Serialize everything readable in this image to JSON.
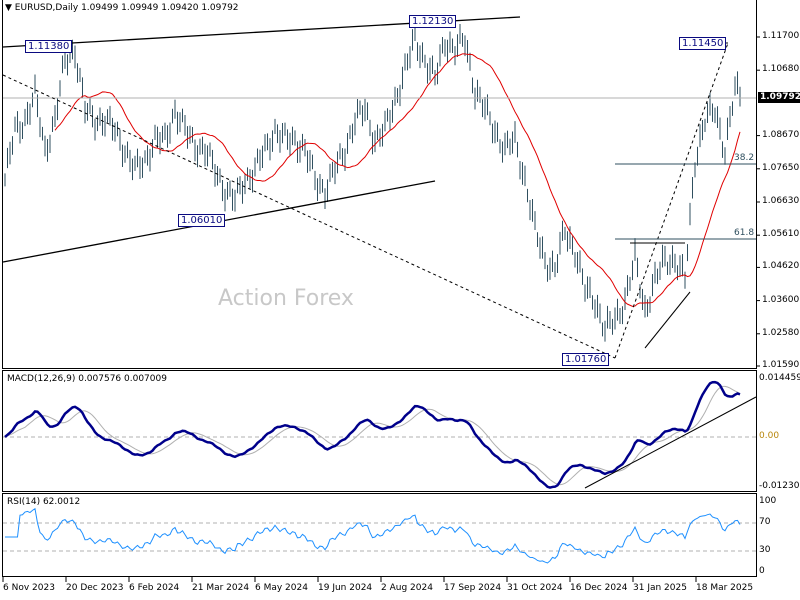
{
  "header": {
    "symbol": "EURUSD,Daily",
    "ohlc": "1.09499 1.09949 1.09420 1.09792"
  },
  "watermark": "Action Forex",
  "annotations": {
    "high1": "1.11380",
    "high2": "1.12130",
    "low1": "1.06010",
    "low2": "1.01760",
    "high3": "1.11450",
    "fib382": "38.2",
    "fib618": "61.8"
  },
  "current_price": "1.09792",
  "colors": {
    "bars": "#2f4f5f",
    "ma": "#e00000",
    "macd": "#00008b",
    "signal": "#b0b0b0",
    "rsi": "#1e90ff"
  },
  "chart_data": [
    {
      "type": "ohlc",
      "title": "EURUSD,Daily",
      "closes": [
        1.0731,
        1.0884,
        1.0915,
        1.0992,
        1.0823,
        1.0915,
        1.1099,
        1.113,
        1.0946,
        1.0915,
        1.0915,
        1.0884,
        1.0823,
        1.0761,
        1.0792,
        1.0854,
        1.0854,
        1.0946,
        1.0884,
        1.0838,
        1.0823,
        1.0761,
        1.07,
        1.0669,
        1.0731,
        1.0761,
        1.0823,
        1.0884,
        1.0854,
        1.0854,
        1.0823,
        1.0731,
        1.07,
        1.0761,
        1.0823,
        1.0915,
        1.0946,
        1.0854,
        1.0884,
        1.0976,
        1.1069,
        1.1161,
        1.1099,
        1.1038,
        1.1161,
        1.113,
        1.1161,
        1.1007,
        1.0946,
        1.0884,
        1.0823,
        1.0854,
        1.0731,
        1.0577,
        1.0485,
        1.0454,
        1.0577,
        1.0515,
        1.0393,
        1.0362,
        1.027,
        1.03,
        1.0362,
        1.0485,
        1.0331,
        1.0423,
        1.0485,
        1.0485,
        1.0423,
        1.0792,
        1.0915,
        1.0946,
        1.0823,
        1.1007,
        1.0976
      ],
      "moving_average": "red line",
      "y_ticks": [
        "1.11700",
        "1.10680",
        "1.08670",
        "1.07650",
        "1.06630",
        "1.05610",
        "1.04620",
        "1.03600",
        "1.02580",
        "1.01590"
      ],
      "ylim": [
        1.0159,
        1.117
      ],
      "x_ticks": [
        "6 Nov 2023",
        "20 Dec 2023",
        "6 Feb 2024",
        "21 Mar 2024",
        "6 May 2024",
        "19 Jun 2024",
        "2 Aug 2024",
        "17 Sep 2024",
        "31 Oct 2024",
        "16 Dec 2024",
        "31 Jan 2025",
        "18 Mar 2025"
      ]
    },
    {
      "type": "line",
      "title": "MACD(12,26,9) 0.007576 0.007009",
      "y_ticks": [
        "0.014459",
        "0.00",
        "-0.012303"
      ],
      "ylim": [
        -0.012303,
        0.014459
      ]
    },
    {
      "type": "line",
      "title": "RSI(14) 62.0012",
      "levels": [
        70,
        30
      ],
      "y_ticks": [
        "100",
        "70",
        "30",
        "0"
      ],
      "ylim": [
        0,
        100
      ]
    }
  ]
}
